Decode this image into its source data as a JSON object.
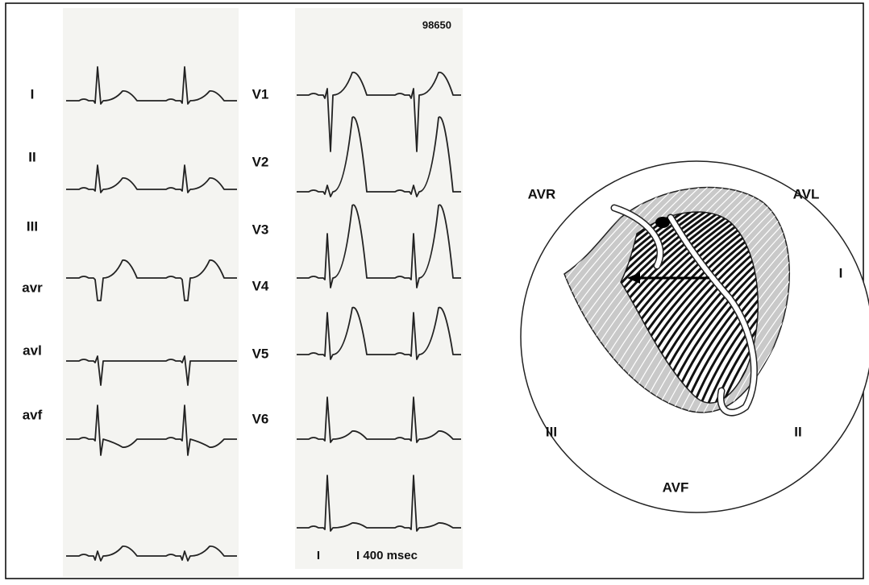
{
  "header": {
    "number": "98650"
  },
  "limb_leads": [
    "I",
    "II",
    "III",
    "avr",
    "avl",
    "avf"
  ],
  "precordial_leads": [
    "V1",
    "V2",
    "V3",
    "V4",
    "V5",
    "V6"
  ],
  "calibration": {
    "marker": "I",
    "label": "I 400 msec"
  },
  "diagram": {
    "labels": {
      "avr": "AVR",
      "avl": "AVL",
      "lead_i": "I",
      "lead_ii": "II",
      "lead_iii": "III",
      "avf": "AVF"
    }
  }
}
